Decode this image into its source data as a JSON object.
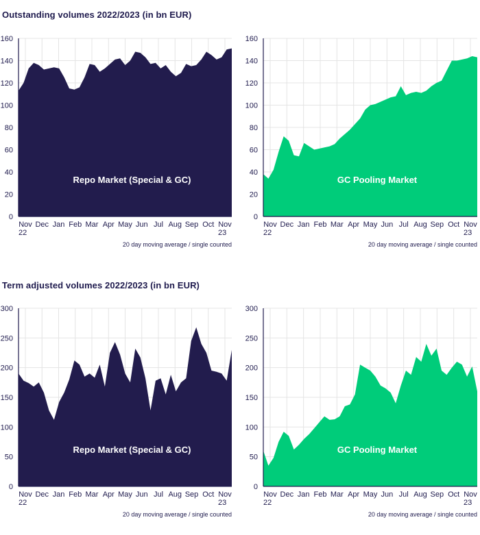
{
  "sections": [
    {
      "title": "Outstanding volumes 2022/2023 (in bn EUR)"
    },
    {
      "title": "Term adjusted volumes 2022/2023 (in bn EUR)"
    }
  ],
  "colors": {
    "repo": "#221c4d",
    "gc": "#00cc7a",
    "grid": "#e4e4e4",
    "axis": "#1e1a4d"
  },
  "chart_data": [
    {
      "type": "area",
      "section": 0,
      "panel": "left",
      "series_color": "repo",
      "label": "Repo Market (Special & GC)",
      "note": "20 day moving average / single counted",
      "yticks": [
        0,
        20,
        40,
        60,
        80,
        100,
        120,
        140,
        160
      ],
      "ylim": [
        0,
        160
      ],
      "x_labels": [
        [
          "Nov",
          "22"
        ],
        [
          "Dec",
          ""
        ],
        [
          "Jan",
          ""
        ],
        [
          "Feb",
          ""
        ],
        [
          "Mar",
          ""
        ],
        [
          "Apr",
          ""
        ],
        [
          "May",
          ""
        ],
        [
          "Jun",
          ""
        ],
        [
          "Jul",
          ""
        ],
        [
          "Aug",
          ""
        ],
        [
          "Sep",
          ""
        ],
        [
          "Oct",
          ""
        ],
        [
          "Nov",
          "23"
        ]
      ],
      "x": [
        0,
        0.3,
        0.6,
        0.9,
        1.2,
        1.5,
        1.8,
        2.1,
        2.4,
        2.7,
        3.0,
        3.3,
        3.6,
        3.9,
        4.2,
        4.5,
        4.8,
        5.1,
        5.4,
        5.7,
        6.0,
        6.3,
        6.6,
        6.9,
        7.2,
        7.5,
        7.8,
        8.1,
        8.4,
        8.7,
        9.0,
        9.3,
        9.6,
        9.9,
        10.2,
        10.5,
        10.8,
        11.1,
        11.4,
        11.7,
        12.0,
        12.3,
        12.6
      ],
      "values": [
        113,
        120,
        133,
        138,
        136,
        132,
        133,
        134,
        133,
        125,
        115,
        114,
        116,
        125,
        137,
        136,
        130,
        133,
        137,
        141,
        142,
        136,
        140,
        148,
        147,
        143,
        137,
        138,
        133,
        136,
        130,
        126,
        129,
        137,
        135,
        136,
        141,
        148,
        145,
        141,
        143,
        150,
        151
      ]
    },
    {
      "type": "area",
      "section": 0,
      "panel": "right",
      "series_color": "gc",
      "label": "GC Pooling Market",
      "note": "20 day moving average / single counted",
      "yticks": [
        0,
        20,
        40,
        60,
        80,
        100,
        120,
        140,
        160
      ],
      "ylim": [
        0,
        160
      ],
      "x_labels": [
        [
          "Nov",
          "22"
        ],
        [
          "Dec",
          ""
        ],
        [
          "Jan",
          ""
        ],
        [
          "Feb",
          ""
        ],
        [
          "Mar",
          ""
        ],
        [
          "Apr",
          ""
        ],
        [
          "May",
          ""
        ],
        [
          "Jun",
          ""
        ],
        [
          "Jul",
          ""
        ],
        [
          "Aug",
          ""
        ],
        [
          "Sep",
          ""
        ],
        [
          "Oct",
          ""
        ],
        [
          "Nov",
          "23"
        ]
      ],
      "x": [
        0,
        0.3,
        0.6,
        0.9,
        1.2,
        1.5,
        1.8,
        2.1,
        2.4,
        2.7,
        3.0,
        3.3,
        3.6,
        3.9,
        4.2,
        4.5,
        4.8,
        5.1,
        5.4,
        5.7,
        6.0,
        6.3,
        6.6,
        6.9,
        7.2,
        7.5,
        7.8,
        8.1,
        8.4,
        8.7,
        9.0,
        9.3,
        9.6,
        9.9,
        10.2,
        10.5,
        10.8,
        11.1,
        11.4,
        11.7,
        12.0,
        12.3,
        12.6
      ],
      "values": [
        38,
        34,
        42,
        58,
        72,
        68,
        55,
        54,
        66,
        63,
        60,
        61,
        62,
        63,
        65,
        70,
        74,
        78,
        83,
        88,
        96,
        100,
        101,
        103,
        105,
        107,
        108,
        117,
        109,
        111,
        112,
        111,
        113,
        117,
        120,
        122,
        131,
        140,
        140,
        141,
        142,
        144,
        143
      ]
    },
    {
      "type": "area",
      "section": 1,
      "panel": "left",
      "series_color": "repo",
      "label": "Repo Market (Special & GC)",
      "note": "20 day moving average / single counted",
      "yticks": [
        0,
        50,
        100,
        150,
        200,
        250,
        300
      ],
      "ylim": [
        0,
        300
      ],
      "x_labels": [
        [
          "Nov",
          "22"
        ],
        [
          "Dec",
          ""
        ],
        [
          "Jan",
          ""
        ],
        [
          "Feb",
          ""
        ],
        [
          "Mar",
          ""
        ],
        [
          "Apr",
          ""
        ],
        [
          "May",
          ""
        ],
        [
          "Jun",
          ""
        ],
        [
          "Jul",
          ""
        ],
        [
          "Aug",
          ""
        ],
        [
          "Sep",
          ""
        ],
        [
          "Oct",
          ""
        ],
        [
          "Nov",
          "23"
        ]
      ],
      "x": [
        0,
        0.3,
        0.6,
        0.9,
        1.2,
        1.5,
        1.8,
        2.1,
        2.4,
        2.7,
        3.0,
        3.3,
        3.6,
        3.9,
        4.2,
        4.5,
        4.8,
        5.1,
        5.4,
        5.7,
        6.0,
        6.3,
        6.6,
        6.9,
        7.2,
        7.5,
        7.8,
        8.1,
        8.4,
        8.7,
        9.0,
        9.3,
        9.6,
        9.9,
        10.2,
        10.5,
        10.8,
        11.1,
        11.4,
        11.7,
        12.0,
        12.3,
        12.6
      ],
      "values": [
        190,
        178,
        174,
        168,
        175,
        158,
        128,
        112,
        142,
        158,
        180,
        212,
        205,
        185,
        190,
        183,
        205,
        168,
        225,
        243,
        222,
        190,
        175,
        232,
        217,
        182,
        128,
        178,
        182,
        155,
        188,
        160,
        175,
        182,
        245,
        268,
        240,
        225,
        195,
        193,
        190,
        178,
        230
      ]
    },
    {
      "type": "area",
      "section": 1,
      "panel": "right",
      "series_color": "gc",
      "label": "GC Pooling Market",
      "note": "20 day moving average / single counted",
      "yticks": [
        0,
        50,
        100,
        150,
        200,
        250,
        300
      ],
      "ylim": [
        0,
        300
      ],
      "x_labels": [
        [
          "Nov",
          "22"
        ],
        [
          "Dec",
          ""
        ],
        [
          "Jan",
          ""
        ],
        [
          "Feb",
          ""
        ],
        [
          "Mar",
          ""
        ],
        [
          "Apr",
          ""
        ],
        [
          "May",
          ""
        ],
        [
          "Jun",
          ""
        ],
        [
          "Jul",
          ""
        ],
        [
          "Aug",
          ""
        ],
        [
          "Sep",
          ""
        ],
        [
          "Oct",
          ""
        ],
        [
          "Nov",
          "23"
        ]
      ],
      "x": [
        0,
        0.3,
        0.6,
        0.9,
        1.2,
        1.5,
        1.8,
        2.1,
        2.4,
        2.7,
        3.0,
        3.3,
        3.6,
        3.9,
        4.2,
        4.5,
        4.8,
        5.1,
        5.4,
        5.7,
        6.0,
        6.3,
        6.6,
        6.9,
        7.2,
        7.5,
        7.8,
        8.1,
        8.4,
        8.7,
        9.0,
        9.3,
        9.6,
        9.9,
        10.2,
        10.5,
        10.8,
        11.1,
        11.4,
        11.7,
        12.0,
        12.3,
        12.6
      ],
      "values": [
        60,
        35,
        48,
        75,
        92,
        85,
        62,
        70,
        80,
        88,
        98,
        108,
        118,
        112,
        113,
        118,
        135,
        138,
        155,
        205,
        200,
        195,
        185,
        170,
        165,
        158,
        140,
        170,
        195,
        188,
        218,
        210,
        240,
        220,
        232,
        195,
        188,
        200,
        210,
        205,
        185,
        202,
        160
      ]
    }
  ]
}
